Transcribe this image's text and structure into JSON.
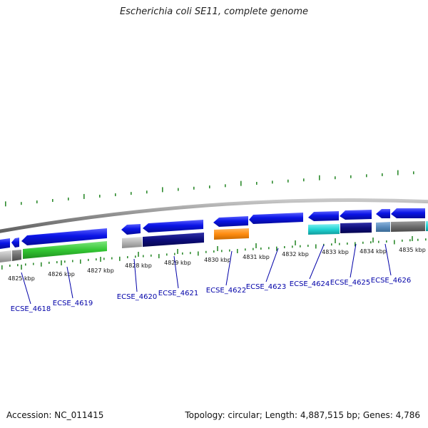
{
  "title": "Escherichia coli SE11, complete genome",
  "footer": {
    "accession": "Accession: NC_011415",
    "summary": "Topology: circular; Length: 4,887,515 bp; Genes: 4,786"
  },
  "colors": {
    "forward_gene": "#0a14e6",
    "green_gene": "#33c633",
    "gray_gene": "#b4b4b4",
    "dark_gray_gene": "#6e6e6e",
    "navy_gene": "#0c0c7a",
    "orange_gene": "#ff8c10",
    "cyan_gene": "#20d4d4",
    "steel_gene": "#5a8cbc",
    "backbone": "#888888",
    "tick": "#2e8b2e",
    "label": "#0000a8"
  },
  "axis": {
    "unit": "kbp",
    "ticks": [
      {
        "value": 4825,
        "label": "4825 kbp"
      },
      {
        "value": 4826,
        "label": "4826 kbp"
      },
      {
        "value": 4827,
        "label": "4827 kbp"
      },
      {
        "value": 4828,
        "label": "4828 kbp"
      },
      {
        "value": 4829,
        "label": "4829 kbp"
      },
      {
        "value": 4830,
        "label": "4830 kbp"
      },
      {
        "value": 4831,
        "label": "4831 kbp"
      },
      {
        "value": 4832,
        "label": "4832 kbp"
      },
      {
        "value": 4833,
        "label": "4833 kbp"
      },
      {
        "value": 4834,
        "label": "4834 kbp"
      },
      {
        "value": 4835,
        "label": "4835 kbp"
      }
    ]
  },
  "gene_labels": [
    {
      "id": "ECSE_4618",
      "label": "ECSE_4618"
    },
    {
      "id": "ECSE_4619",
      "label": "ECSE_4619"
    },
    {
      "id": "ECSE_4620",
      "label": "ECSE_4620"
    },
    {
      "id": "ECSE_4621",
      "label": "ECSE_4621"
    },
    {
      "id": "ECSE_4622",
      "label": "ECSE_4622"
    },
    {
      "id": "ECSE_4623",
      "label": "ECSE_4623"
    },
    {
      "id": "ECSE_4624",
      "label": "ECSE_4624"
    },
    {
      "id": "ECSE_4625",
      "label": "ECSE_4625"
    },
    {
      "id": "ECSE_4626",
      "label": "ECSE_4626"
    }
  ]
}
